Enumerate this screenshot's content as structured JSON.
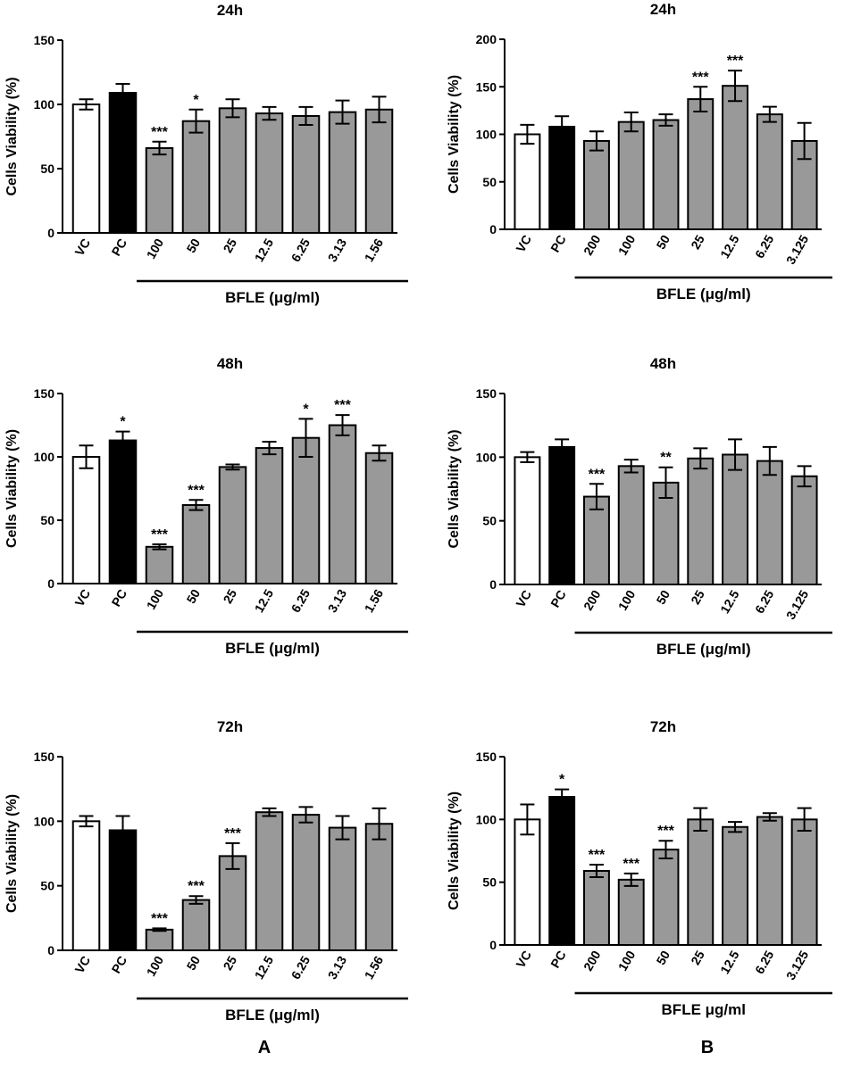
{
  "chart_data": [
    {
      "type": "bar",
      "title": "24h",
      "y_label": "Cells Viability (%)",
      "group_label": "BFLE (μg/ml)",
      "categories": [
        "VC",
        "PC",
        "100",
        "50",
        "25",
        "12.5",
        "6.25",
        "3.13",
        "1.56"
      ],
      "values": [
        100,
        109,
        66,
        87,
        97,
        93,
        91,
        94,
        96
      ],
      "errors": [
        4,
        7,
        5,
        9,
        7,
        5,
        7,
        9,
        10
      ],
      "annotations": [
        null,
        null,
        "***",
        "*",
        null,
        null,
        null,
        null,
        null
      ],
      "colors": [
        "#ffffff",
        "#000000",
        "#999999",
        "#999999",
        "#999999",
        "#999999",
        "#999999",
        "#999999",
        "#999999"
      ],
      "ylim": [
        0,
        150
      ],
      "yticks": [
        0,
        50,
        100,
        150
      ]
    },
    {
      "type": "bar",
      "title": "24h",
      "y_label": "Cells Viability (%)",
      "group_label": "BFLE (μg/ml)",
      "categories": [
        "VC",
        "PC",
        "200",
        "100",
        "50",
        "25",
        "12.5",
        "6.25",
        "3.125"
      ],
      "values": [
        100,
        108,
        93,
        113,
        115,
        137,
        151,
        121,
        93
      ],
      "errors": [
        10,
        11,
        10,
        10,
        6,
        13,
        16,
        8,
        19
      ],
      "annotations": [
        null,
        null,
        null,
        null,
        null,
        "***",
        "***",
        null,
        null
      ],
      "colors": [
        "#ffffff",
        "#000000",
        "#999999",
        "#999999",
        "#999999",
        "#999999",
        "#999999",
        "#999999",
        "#999999"
      ],
      "ylim": [
        0,
        200
      ],
      "yticks": [
        0,
        50,
        100,
        150,
        200
      ]
    },
    {
      "type": "bar",
      "title": "48h",
      "y_label": "Cells Viability (%)",
      "group_label": "BFLE (μg/ml)",
      "categories": [
        "VC",
        "PC",
        "100",
        "50",
        "25",
        "12.5",
        "6.25",
        "3.13",
        "1.56"
      ],
      "values": [
        100,
        113,
        29,
        62,
        92,
        107,
        115,
        125,
        103
      ],
      "errors": [
        9,
        7,
        2,
        4,
        2,
        5,
        15,
        8,
        6
      ],
      "annotations": [
        null,
        "*",
        "***",
        "***",
        null,
        null,
        "*",
        "***",
        null
      ],
      "colors": [
        "#ffffff",
        "#000000",
        "#999999",
        "#999999",
        "#999999",
        "#999999",
        "#999999",
        "#999999",
        "#999999"
      ],
      "ylim": [
        0,
        150
      ],
      "yticks": [
        0,
        50,
        100,
        150
      ]
    },
    {
      "type": "bar",
      "title": "48h",
      "y_label": "Cells Viability (%)",
      "group_label": "BFLE (μg/ml)",
      "categories": [
        "VC",
        "PC",
        "200",
        "100",
        "50",
        "25",
        "12.5",
        "6.25",
        "3.125"
      ],
      "values": [
        100,
        108,
        69,
        93,
        80,
        99,
        102,
        97,
        85
      ],
      "errors": [
        4,
        6,
        10,
        5,
        12,
        8,
        12,
        11,
        8
      ],
      "annotations": [
        null,
        null,
        "***",
        null,
        "**",
        null,
        null,
        null,
        null
      ],
      "colors": [
        "#ffffff",
        "#000000",
        "#999999",
        "#999999",
        "#999999",
        "#999999",
        "#999999",
        "#999999",
        "#999999"
      ],
      "ylim": [
        0,
        150
      ],
      "yticks": [
        0,
        50,
        100,
        150
      ]
    },
    {
      "type": "bar",
      "title": "72h",
      "y_label": "Cells Viability (%)",
      "group_label": "BFLE (μg/ml)",
      "categories": [
        "VC",
        "PC",
        "100",
        "50",
        "25",
        "12.5",
        "6.25",
        "3.13",
        "1.56"
      ],
      "values": [
        100,
        93,
        16,
        39,
        73,
        107,
        105,
        95,
        98
      ],
      "errors": [
        4,
        11,
        1,
        3,
        10,
        3,
        6,
        9,
        12
      ],
      "annotations": [
        null,
        null,
        "***",
        "***",
        "***",
        null,
        null,
        null,
        null
      ],
      "colors": [
        "#ffffff",
        "#000000",
        "#999999",
        "#999999",
        "#999999",
        "#999999",
        "#999999",
        "#999999",
        "#999999"
      ],
      "ylim": [
        0,
        150
      ],
      "yticks": [
        0,
        50,
        100,
        150
      ]
    },
    {
      "type": "bar",
      "title": "72h",
      "y_label": "Cells Viability (%)",
      "group_label": "BFLE μg/ml",
      "categories": [
        "VC",
        "PC",
        "200",
        "100",
        "50",
        "25",
        "12.5",
        "6.25",
        "3.125"
      ],
      "values": [
        100,
        118,
        59,
        52,
        76,
        100,
        94,
        102,
        100
      ],
      "errors": [
        12,
        6,
        5,
        5,
        7,
        9,
        4,
        3,
        9
      ],
      "annotations": [
        null,
        "*",
        "***",
        "***",
        "***",
        null,
        null,
        null,
        null
      ],
      "colors": [
        "#ffffff",
        "#000000",
        "#999999",
        "#999999",
        "#999999",
        "#999999",
        "#999999",
        "#999999",
        "#999999"
      ],
      "ylim": [
        0,
        150
      ],
      "yticks": [
        0,
        50,
        100,
        150
      ]
    }
  ],
  "panel_labels": [
    "A",
    "B"
  ]
}
